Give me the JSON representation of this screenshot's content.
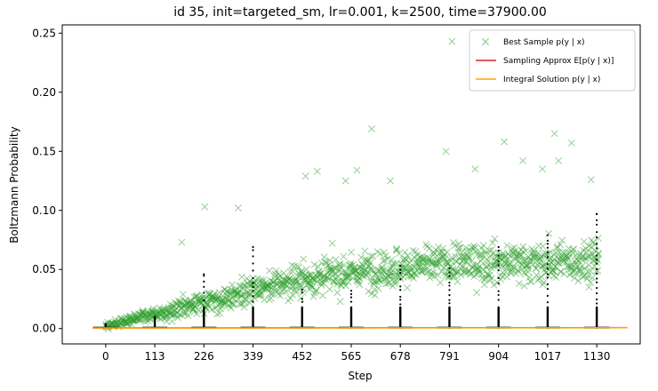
{
  "chart_data": {
    "type": "scatter",
    "title": "id 35, init=targeted_sm, lr=0.001, k=2500, time=37900.00",
    "xlabel": "Step",
    "ylabel": "Boltzmann Probability",
    "xlim": [
      -100,
      1230
    ],
    "ylim": [
      -0.013,
      0.257
    ],
    "xticks": [
      0,
      113,
      226,
      339,
      452,
      565,
      678,
      791,
      904,
      1017,
      1130
    ],
    "yticks": [
      0.0,
      0.05,
      0.1,
      0.15,
      0.2,
      0.25
    ],
    "ytick_labels": [
      "0.00",
      "0.05",
      "0.10",
      "0.15",
      "0.20",
      "0.25"
    ],
    "grid": false,
    "legend_position": "top-right",
    "legend": [
      {
        "label": "Best Sample p(y | x)",
        "color": "#2ca02c",
        "marker": "x"
      },
      {
        "label": "Sampling Approx E[p(y | x)]",
        "color": "#d62728",
        "marker": "line"
      },
      {
        "label": "Integral Solution p(y | x)",
        "color": "#ffa500",
        "marker": "line"
      }
    ],
    "best_sample_trend": {
      "x": [
        0,
        113,
        226,
        339,
        452,
        565,
        678,
        791,
        904,
        1017,
        1130
      ],
      "y_center": [
        0.002,
        0.012,
        0.022,
        0.032,
        0.042,
        0.048,
        0.052,
        0.055,
        0.056,
        0.056,
        0.058
      ],
      "y_spread": [
        0.003,
        0.01,
        0.015,
        0.018,
        0.022,
        0.024,
        0.025,
        0.025,
        0.026,
        0.026,
        0.026
      ]
    },
    "best_sample_outliers": [
      {
        "x": 175,
        "y": 0.073
      },
      {
        "x": 228,
        "y": 0.103
      },
      {
        "x": 305,
        "y": 0.102
      },
      {
        "x": 460,
        "y": 0.129
      },
      {
        "x": 487,
        "y": 0.133
      },
      {
        "x": 552,
        "y": 0.125
      },
      {
        "x": 578,
        "y": 0.134
      },
      {
        "x": 612,
        "y": 0.169
      },
      {
        "x": 655,
        "y": 0.125
      },
      {
        "x": 783,
        "y": 0.15
      },
      {
        "x": 797,
        "y": 0.243
      },
      {
        "x": 850,
        "y": 0.135
      },
      {
        "x": 917,
        "y": 0.158
      },
      {
        "x": 960,
        "y": 0.142
      },
      {
        "x": 1005,
        "y": 0.135
      },
      {
        "x": 1033,
        "y": 0.165
      },
      {
        "x": 1042,
        "y": 0.142
      },
      {
        "x": 1072,
        "y": 0.157
      },
      {
        "x": 1117,
        "y": 0.126
      }
    ],
    "sample_dot_columns": [
      {
        "x": 0,
        "ymax": 0.004
      },
      {
        "x": 113,
        "ymax": 0.01
      },
      {
        "x": 226,
        "ymax": 0.046
      },
      {
        "x": 339,
        "ymax": 0.069
      },
      {
        "x": 452,
        "ymax": 0.033
      },
      {
        "x": 565,
        "ymax": 0.032
      },
      {
        "x": 678,
        "ymax": 0.053
      },
      {
        "x": 791,
        "ymax": 0.051
      },
      {
        "x": 904,
        "ymax": 0.069
      },
      {
        "x": 1017,
        "ymax": 0.079
      },
      {
        "x": 1130,
        "ymax": 0.097
      }
    ],
    "sampling_approx": {
      "x": [
        -30,
        1200
      ],
      "y": [
        0.0005,
        0.0008
      ]
    },
    "integral_solution": {
      "x": [
        -30,
        1200
      ],
      "y": [
        0.0004,
        0.0007
      ]
    }
  }
}
